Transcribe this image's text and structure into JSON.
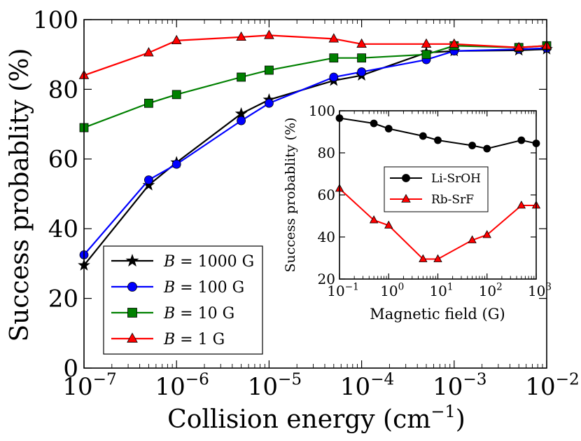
{
  "chart_data": [
    {
      "type": "line",
      "xscale": "log",
      "xlim": [
        1e-07,
        0.01
      ],
      "ylim": [
        0,
        100
      ],
      "xlabel_main": "Collision energy (cm",
      "xlabel_sup": "−1",
      "xlabel_tail": ")",
      "ylabel": "Success probablity (%)",
      "yticks": [
        "0",
        "20",
        "40",
        "60",
        "80",
        "100"
      ],
      "xticks": [
        {
          "base": "10",
          "exp": "−7"
        },
        {
          "base": "10",
          "exp": "−6"
        },
        {
          "base": "10",
          "exp": "−5"
        },
        {
          "base": "10",
          "exp": "−4"
        },
        {
          "base": "10",
          "exp": "−3"
        },
        {
          "base": "10",
          "exp": "−2"
        }
      ],
      "legend_position": "lower-left",
      "series": [
        {
          "name": "B = 1000 G",
          "var": "B",
          "rest": " = 1000 G",
          "color": "#000000",
          "marker": "star",
          "x": [
            1e-07,
            5e-07,
            1e-06,
            5e-06,
            1e-05,
            5e-05,
            0.0001,
            0.0005,
            0.001,
            0.005,
            0.01
          ],
          "y": [
            29.5,
            52.5,
            59,
            73,
            77,
            82.5,
            84,
            90.5,
            91,
            91.2,
            91.5
          ]
        },
        {
          "name": "B = 100 G",
          "var": "B",
          "rest": " = 100 G",
          "color": "#0000ff",
          "marker": "circle",
          "x": [
            1e-07,
            5e-07,
            1e-06,
            5e-06,
            1e-05,
            5e-05,
            0.0001,
            0.0005,
            0.001,
            0.005,
            0.01
          ],
          "y": [
            32.5,
            54,
            58.5,
            71,
            76,
            83.5,
            85,
            88.5,
            91,
            91.5,
            91.8
          ]
        },
        {
          "name": "B = 10 G",
          "var": "B",
          "rest": " = 10 G",
          "color": "#008000",
          "marker": "square",
          "x": [
            1e-07,
            5e-07,
            1e-06,
            5e-06,
            1e-05,
            5e-05,
            0.0001,
            0.0005,
            0.001,
            0.005,
            0.01
          ],
          "y": [
            69,
            76,
            78.5,
            83.5,
            85.5,
            89,
            89,
            90,
            92.5,
            92,
            92.5
          ]
        },
        {
          "name": "B = 1 G",
          "var": "B",
          "rest": " = 1 G",
          "color": "#ff0000",
          "marker": "triangle",
          "x": [
            1e-07,
            5e-07,
            1e-06,
            5e-06,
            1e-05,
            5e-05,
            0.0001,
            0.0005,
            0.001,
            0.005,
            0.01
          ],
          "y": [
            84,
            90.5,
            94,
            95,
            95.5,
            94.5,
            93,
            93,
            93,
            92,
            92.5
          ]
        }
      ]
    },
    {
      "type": "line",
      "xscale": "log",
      "xlim": [
        0.1,
        1000
      ],
      "ylim": [
        20,
        100
      ],
      "xlabel": "Magnetic field (G)",
      "ylabel": "Success probablity (%)",
      "yticks": [
        "20",
        "40",
        "60",
        "80",
        "100"
      ],
      "xticks": [
        {
          "base": "10",
          "exp": "−1"
        },
        {
          "base": "10",
          "exp": "0"
        },
        {
          "base": "10",
          "exp": "1"
        },
        {
          "base": "10",
          "exp": "2"
        },
        {
          "base": "10",
          "exp": "3"
        }
      ],
      "legend_position": "center",
      "series": [
        {
          "name": "Li-SrOH",
          "color": "#000000",
          "marker": "circle",
          "x": [
            0.1,
            0.5,
            1,
            5,
            10,
            50,
            100,
            500,
            1000
          ],
          "y": [
            96.5,
            94,
            91.5,
            88,
            86,
            83.5,
            82,
            86,
            84.5
          ]
        },
        {
          "name": "Rb-SrF",
          "color": "#ff0000",
          "marker": "triangle",
          "x": [
            0.1,
            0.5,
            1,
            5,
            10,
            50,
            100,
            500,
            1000
          ],
          "y": [
            63,
            48,
            45.5,
            29.5,
            29.5,
            38.5,
            41,
            55,
            55
          ]
        }
      ]
    }
  ]
}
